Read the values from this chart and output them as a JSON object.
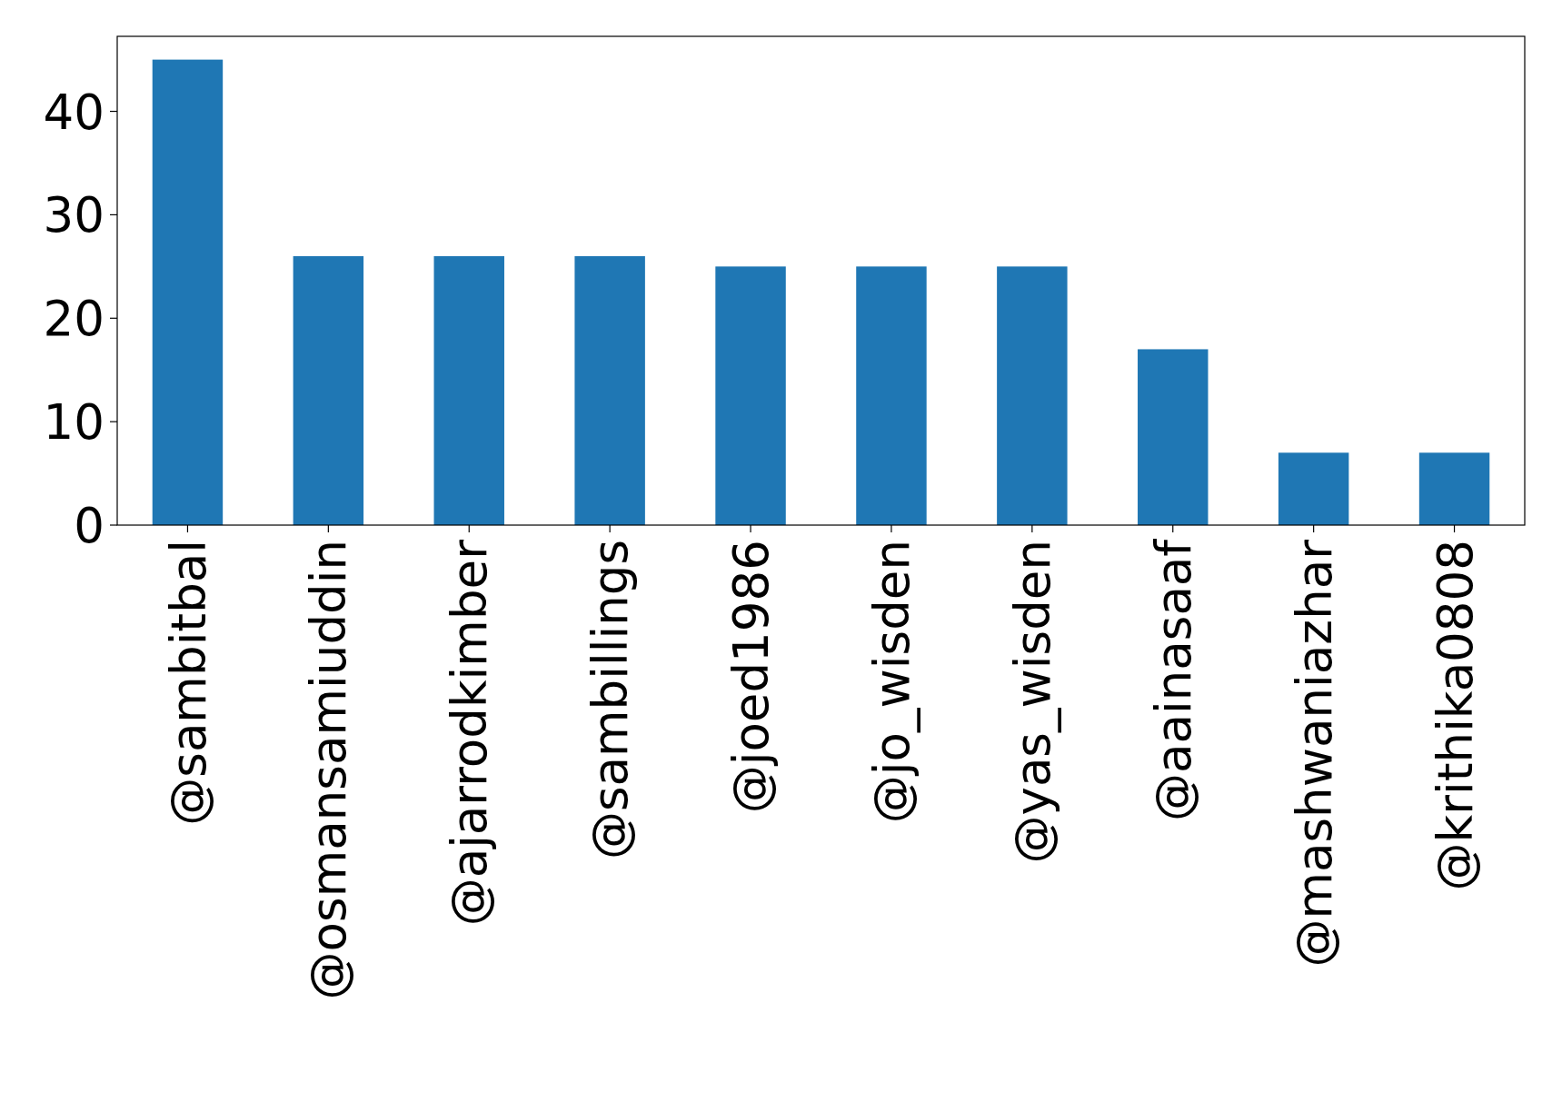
{
  "chart_data": {
    "type": "bar",
    "categories": [
      "@sambitbal",
      "@osmansamiuddin",
      "@ajarrodkimber",
      "@sambillings",
      "@joed1986",
      "@jo_wisden",
      "@yas_wisden",
      "@aainasaaf",
      "@mashwaniazhar",
      "@krithika0808"
    ],
    "values": [
      45,
      26,
      26,
      26,
      25,
      25,
      25,
      17,
      7,
      7
    ],
    "color": "#1f77b4",
    "ylim": [
      0,
      47.25
    ],
    "yticks": [
      0,
      10,
      20,
      30,
      40
    ]
  }
}
